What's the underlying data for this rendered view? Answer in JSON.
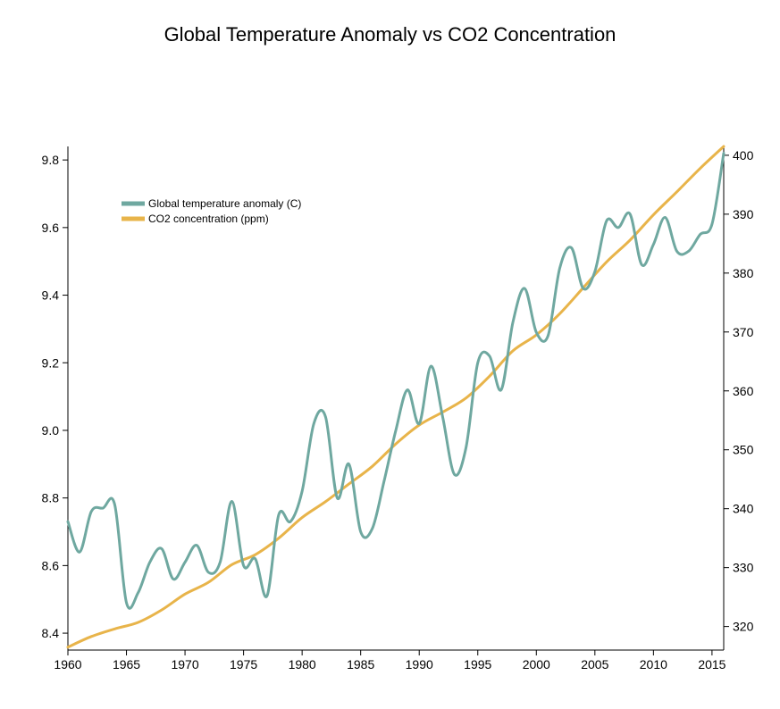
{
  "chart_data": {
    "type": "line",
    "title": "Global Temperature Anomaly vs CO2 Concentration",
    "xlabel": "",
    "ylabel": "",
    "ylabel_right": "",
    "xlim": [
      1960,
      2016
    ],
    "ylim": [
      8.35,
      9.84
    ],
    "ylim_right": [
      316,
      401.5
    ],
    "x_ticks": [
      1960,
      1965,
      1970,
      1975,
      1980,
      1985,
      1990,
      1995,
      2000,
      2005,
      2010,
      2015
    ],
    "y_ticks": [
      8.4,
      8.6,
      8.8,
      9.0,
      9.2,
      9.4,
      9.6,
      9.8
    ],
    "y_ticks_right": [
      320,
      330,
      340,
      350,
      360,
      370,
      380,
      390,
      400
    ],
    "grid": false,
    "legend_position": "top-left",
    "series": [
      {
        "name": "Global temperature anomaly (C)",
        "axis": "left",
        "color": "#6fa8a0",
        "x": [
          1960,
          1961,
          1962,
          1963,
          1964,
          1965,
          1966,
          1967,
          1968,
          1969,
          1970,
          1971,
          1972,
          1973,
          1974,
          1975,
          1976,
          1977,
          1978,
          1979,
          1980,
          1981,
          1982,
          1983,
          1984,
          1985,
          1986,
          1987,
          1988,
          1989,
          1990,
          1991,
          1992,
          1993,
          1994,
          1995,
          1996,
          1997,
          1998,
          1999,
          2000,
          2001,
          2002,
          2003,
          2004,
          2005,
          2006,
          2007,
          2008,
          2009,
          2010,
          2011,
          2012,
          2013,
          2014,
          2015,
          2016
        ],
        "values": [
          8.73,
          8.64,
          8.76,
          8.77,
          8.78,
          8.49,
          8.52,
          8.61,
          8.65,
          8.56,
          8.61,
          8.66,
          8.58,
          8.61,
          8.79,
          8.6,
          8.62,
          8.51,
          8.75,
          8.73,
          8.82,
          9.02,
          9.04,
          8.8,
          8.9,
          8.7,
          8.71,
          8.85,
          9.0,
          9.12,
          9.02,
          9.19,
          9.04,
          8.87,
          8.95,
          9.2,
          9.22,
          9.12,
          9.32,
          9.42,
          9.29,
          9.28,
          9.48,
          9.54,
          9.42,
          9.47,
          9.62,
          9.6,
          9.64,
          9.49,
          9.55,
          9.63,
          9.53,
          9.53,
          9.58,
          9.61,
          9.82
        ]
      },
      {
        "name": "CO2 concentration (ppm)",
        "axis": "right",
        "color": "#e8b44a",
        "x": [
          1960,
          1962,
          1964,
          1966,
          1968,
          1970,
          1972,
          1974,
          1976,
          1978,
          1980,
          1982,
          1984,
          1986,
          1988,
          1990,
          1992,
          1994,
          1996,
          1998,
          2000,
          2002,
          2004,
          2006,
          2008,
          2010,
          2012,
          2014,
          2016
        ],
        "values": [
          316.5,
          318.3,
          319.6,
          320.7,
          322.8,
          325.5,
          327.5,
          330.5,
          332.2,
          335.0,
          338.5,
          341.2,
          344.2,
          347.2,
          351.0,
          354.2,
          356.4,
          358.8,
          362.5,
          366.8,
          369.5,
          373.1,
          377.5,
          381.9,
          385.6,
          389.9,
          393.8,
          397.8,
          401.5
        ]
      }
    ]
  }
}
